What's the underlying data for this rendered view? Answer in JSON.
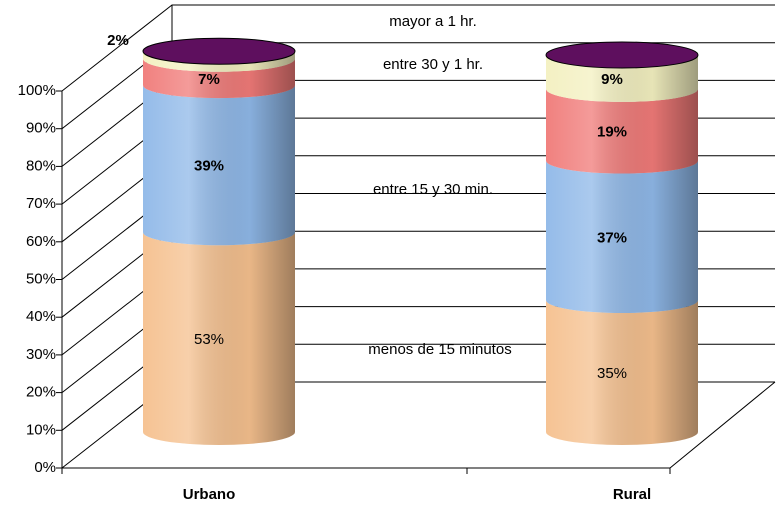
{
  "chart_data": {
    "type": "cylinder-stacked",
    "categories": [
      "Urbano",
      "Rural"
    ],
    "series": [
      {
        "name": "menos de 15 minutos",
        "color": "#f5c08e",
        "values": [
          53,
          35
        ],
        "value_labels": [
          "53%",
          "35%"
        ]
      },
      {
        "name": "entre 15 y 30 min.",
        "color": "#8fb8e8",
        "values": [
          39,
          37
        ],
        "value_labels": [
          "39%",
          "37%"
        ]
      },
      {
        "name": "entre 30 y 1 hr.",
        "color": "#f07a78",
        "values": [
          7,
          19
        ],
        "value_labels": [
          "7%",
          "19%"
        ]
      },
      {
        "name": "mayor a 1 hr.",
        "color": "#f3f0c0",
        "values": [
          2,
          9
        ],
        "value_labels": [
          "2%",
          "9%"
        ]
      }
    ],
    "cap_color": "#5e0f5e",
    "ylim": [
      0,
      100
    ],
    "yticks": [
      {
        "value": 0,
        "label": "0%"
      },
      {
        "value": 10,
        "label": "10%"
      },
      {
        "value": 20,
        "label": "20%"
      },
      {
        "value": 30,
        "label": "30%"
      },
      {
        "value": 40,
        "label": "40%"
      },
      {
        "value": 50,
        "label": "50%"
      },
      {
        "value": 60,
        "label": "60%"
      },
      {
        "value": 70,
        "label": "70%"
      },
      {
        "value": 80,
        "label": "80%"
      },
      {
        "value": 90,
        "label": "90%"
      },
      {
        "value": 100,
        "label": "100%"
      }
    ],
    "grid": true
  }
}
